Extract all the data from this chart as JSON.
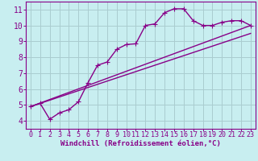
{
  "xlabel": "Windchill (Refroidissement éolien,°C)",
  "background_color": "#c8eef0",
  "grid_color": "#aaccd0",
  "line_color": "#880088",
  "spine_color": "#880088",
  "xlim": [
    -0.5,
    23.5
  ],
  "ylim": [
    3.5,
    11.5
  ],
  "xticks": [
    0,
    1,
    2,
    3,
    4,
    5,
    6,
    7,
    8,
    9,
    10,
    11,
    12,
    13,
    14,
    15,
    16,
    17,
    18,
    19,
    20,
    21,
    22,
    23
  ],
  "yticks": [
    4,
    5,
    6,
    7,
    8,
    9,
    10,
    11
  ],
  "curve1_x": [
    0,
    1,
    2,
    3,
    4,
    5,
    6,
    7,
    8,
    9,
    10,
    11,
    12,
    13,
    14,
    15,
    16,
    17,
    18,
    19,
    20,
    21,
    22,
    23
  ],
  "curve1_y": [
    4.9,
    5.1,
    4.1,
    4.5,
    4.7,
    5.2,
    6.4,
    7.5,
    7.7,
    8.5,
    8.8,
    8.85,
    10.0,
    10.1,
    10.8,
    11.05,
    11.05,
    10.3,
    10.0,
    10.0,
    10.2,
    10.3,
    10.3,
    10.0
  ],
  "curve2_x": [
    0,
    23
  ],
  "curve2_y": [
    4.9,
    10.0
  ],
  "curve3_x": [
    0,
    23
  ],
  "curve3_y": [
    4.9,
    9.5
  ],
  "xlabel_fontsize": 6.5,
  "tick_fontsize": 6.0,
  "ytick_fontsize": 7.0
}
